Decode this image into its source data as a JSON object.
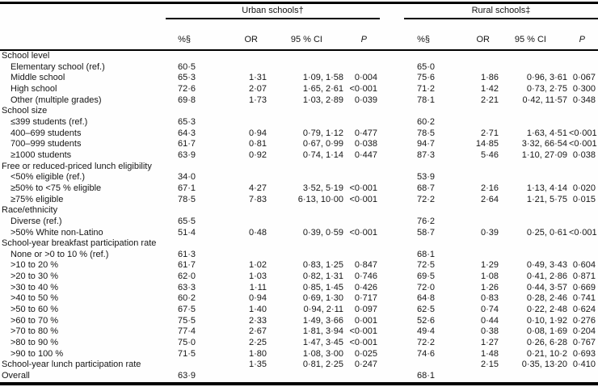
{
  "table": {
    "groups": [
      {
        "label": "Urban schools†"
      },
      {
        "label": "Rural schools‡"
      }
    ],
    "columns": [
      "%§",
      "OR",
      "95 % CI",
      "P"
    ],
    "rows": [
      {
        "label": "School level",
        "type": "section"
      },
      {
        "label": "Elementary school (ref.)",
        "indent": true,
        "urban": {
          "pct": "60·5"
        },
        "rural": {
          "pct": "65·0"
        }
      },
      {
        "label": "Middle school",
        "indent": true,
        "urban": {
          "pct": "65·3",
          "or": "1·31",
          "ci": "1·09, 1·58",
          "p": "0·004"
        },
        "rural": {
          "pct": "75·6",
          "or": "1·86",
          "ci": "0·96, 3·61",
          "p": "0·067"
        }
      },
      {
        "label": "High school",
        "indent": true,
        "urban": {
          "pct": "72·6",
          "or": "2·07",
          "ci": "1·65, 2·61",
          "p": "<0·001"
        },
        "rural": {
          "pct": "71·2",
          "or": "1·42",
          "ci": "0·73, 2·75",
          "p": "0·300"
        }
      },
      {
        "label": "Other (multiple grades)",
        "indent": true,
        "urban": {
          "pct": "69·8",
          "or": "1·73",
          "ci": "1·03, 2·89",
          "p": "0·039"
        },
        "rural": {
          "pct": "78·1",
          "or": "2·21",
          "ci": "0·42, 11·57",
          "p": "0·348"
        }
      },
      {
        "label": "School size",
        "type": "section"
      },
      {
        "label": "≤399 students (ref.)",
        "indent": true,
        "urban": {
          "pct": "65·3"
        },
        "rural": {
          "pct": "60·2"
        }
      },
      {
        "label": "400–699 students",
        "indent": true,
        "urban": {
          "pct": "64·3",
          "or": "0·94",
          "ci": "0·79, 1·12",
          "p": "0·477"
        },
        "rural": {
          "pct": "78·5",
          "or": "2·71",
          "ci": "1·63, 4·51",
          "p": "<0·001"
        }
      },
      {
        "label": "700–999 students",
        "indent": true,
        "urban": {
          "pct": "61·7",
          "or": "0·81",
          "ci": "0·67, 0·99",
          "p": "0·038"
        },
        "rural": {
          "pct": "94·7",
          "or": "14·85",
          "ci": "3·32, 66·54",
          "p": "<0·001"
        }
      },
      {
        "label": "≥1000 students",
        "indent": true,
        "urban": {
          "pct": "63·9",
          "or": "0·92",
          "ci": "0·74, 1·14",
          "p": "0·447"
        },
        "rural": {
          "pct": "87·3",
          "or": "5·46",
          "ci": "1·10, 27·09",
          "p": "0·038"
        }
      },
      {
        "label": "Free or reduced-priced lunch eligibility",
        "type": "section"
      },
      {
        "label": "<50% eligible (ref.)",
        "indent": true,
        "urban": {
          "pct": "34·0"
        },
        "rural": {
          "pct": "53·9"
        }
      },
      {
        "label": "≥50% to <75 % eligible",
        "indent": true,
        "urban": {
          "pct": "67·1",
          "or": "4·27",
          "ci": "3·52, 5·19",
          "p": "<0·001"
        },
        "rural": {
          "pct": "68·7",
          "or": "2·16",
          "ci": "1·13, 4·14",
          "p": "0·020"
        }
      },
      {
        "label": "≥75% eligible",
        "indent": true,
        "urban": {
          "pct": "78·5",
          "or": "7·83",
          "ci": "6·13, 10·00",
          "p": "<0·001"
        },
        "rural": {
          "pct": "72·2",
          "or": "2·64",
          "ci": "1·21, 5·75",
          "p": "0·015"
        }
      },
      {
        "label": "Race/ethnicity",
        "type": "section"
      },
      {
        "label": "Diverse (ref.)",
        "indent": true,
        "urban": {
          "pct": "65·5"
        },
        "rural": {
          "pct": "76·2"
        }
      },
      {
        "label": ">50% White non-Latino",
        "indent": true,
        "urban": {
          "pct": "51·4",
          "or": "0·48",
          "ci": "0·39, 0·59",
          "p": "<0·001"
        },
        "rural": {
          "pct": "58·7",
          "or": "0·39",
          "ci": "0·25, 0·61",
          "p": "<0·001"
        }
      },
      {
        "label": "School-year breakfast participation rate",
        "type": "section"
      },
      {
        "label": "None or >0 to 10 % (ref.)",
        "indent": true,
        "urban": {
          "pct": "61·3"
        },
        "rural": {
          "pct": "68·1"
        }
      },
      {
        "label": ">10 to 20 %",
        "indent": true,
        "urban": {
          "pct": "61·7",
          "or": "1·02",
          "ci": "0·83, 1·25",
          "p": "0·847"
        },
        "rural": {
          "pct": "72·5",
          "or": "1·29",
          "ci": "0·49, 3·43",
          "p": "0·604"
        }
      },
      {
        "label": ">20 to 30 %",
        "indent": true,
        "urban": {
          "pct": "62·0",
          "or": "1·03",
          "ci": "0·82, 1·31",
          "p": "0·746"
        },
        "rural": {
          "pct": "69·5",
          "or": "1·08",
          "ci": "0·41, 2·86",
          "p": "0·871"
        }
      },
      {
        "label": ">30 to 40 %",
        "indent": true,
        "urban": {
          "pct": "63·3",
          "or": "1·11",
          "ci": "0·85, 1·45",
          "p": "0·426"
        },
        "rural": {
          "pct": "72·0",
          "or": "1·26",
          "ci": "0·44, 3·57",
          "p": "0·669"
        }
      },
      {
        "label": ">40 to 50 %",
        "indent": true,
        "urban": {
          "pct": "60·2",
          "or": "0·94",
          "ci": "0·69, 1·30",
          "p": "0·717"
        },
        "rural": {
          "pct": "64·8",
          "or": "0·83",
          "ci": "0·28, 2·46",
          "p": "0·741"
        }
      },
      {
        "label": ">50 to 60 %",
        "indent": true,
        "urban": {
          "pct": "67·5",
          "or": "1·40",
          "ci": "0·94, 2·11",
          "p": "0·097"
        },
        "rural": {
          "pct": "62·5",
          "or": "0·74",
          "ci": "0·22, 2·48",
          "p": "0·624"
        }
      },
      {
        "label": ">60 to 70 %",
        "indent": true,
        "urban": {
          "pct": "75·5",
          "or": "2·33",
          "ci": "1·49, 3·66",
          "p": "0·001"
        },
        "rural": {
          "pct": "52·6",
          "or": "0·44",
          "ci": "0·10, 1·92",
          "p": "0·276"
        }
      },
      {
        "label": ">70 to 80 %",
        "indent": true,
        "urban": {
          "pct": "77·4",
          "or": "2·67",
          "ci": "1·81, 3·94",
          "p": "<0·001"
        },
        "rural": {
          "pct": "49·4",
          "or": "0·38",
          "ci": "0·08, 1·69",
          "p": "0·204"
        }
      },
      {
        "label": ">80 to 90 %",
        "indent": true,
        "urban": {
          "pct": "75·0",
          "or": "2·25",
          "ci": "1·47, 3·45",
          "p": "<0·001"
        },
        "rural": {
          "pct": "72·2",
          "or": "1·27",
          "ci": "0·26, 6·28",
          "p": "0·767"
        }
      },
      {
        "label": ">90 to 100 %",
        "indent": true,
        "urban": {
          "pct": "71·5",
          "or": "1·80",
          "ci": "1·08, 3·00",
          "p": "0·025"
        },
        "rural": {
          "pct": "74·6",
          "or": "1·48",
          "ci": "0·21, 10·2",
          "p": "0·693"
        }
      },
      {
        "label": "School-year lunch participation rate",
        "urban": {
          "or": "1·35",
          "ci": "0·81, 2·25",
          "p": "0·247"
        },
        "rural": {
          "or": "2·15",
          "ci": "0·35, 13·20",
          "p": "0·410"
        }
      },
      {
        "label": "Overall",
        "urban": {
          "pct": "63·9"
        },
        "rural": {
          "pct": "68·1"
        }
      }
    ]
  }
}
